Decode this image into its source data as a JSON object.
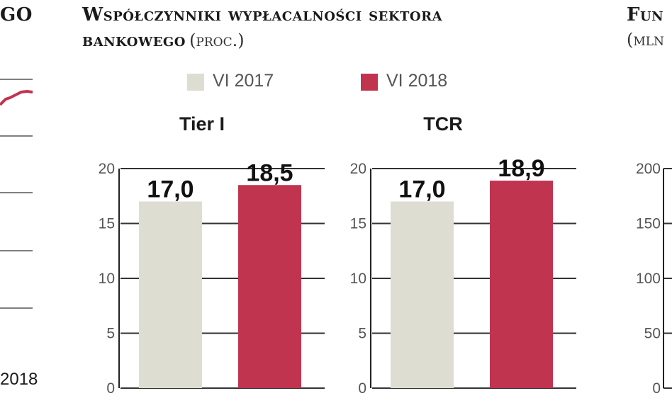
{
  "left_fragment": {
    "title_fragment": "GO",
    "year_label": "2018"
  },
  "main": {
    "title_line1": "Współczynniki wypłacalności sektora",
    "title_line2_bold": "bankowego",
    "title_line2_light": "(proc.)",
    "colors": {
      "vi2017": "#deddd2",
      "vi2018": "#c0344f",
      "axis": "#222222",
      "grid": "#333333"
    }
  },
  "right_fragment": {
    "title_fragment": "Fun",
    "subtitle_fragment": "(mln",
    "ticks": [
      "200",
      "150",
      "100",
      "50",
      "0"
    ]
  },
  "chart_data": [
    {
      "type": "bar",
      "title": "Tier I",
      "categories": [
        "VI 2017",
        "VI 2018"
      ],
      "values": [
        17.0,
        18.5
      ],
      "value_labels": [
        "17,0",
        "18,5"
      ],
      "ylim": [
        0,
        20
      ],
      "yticks": [
        "0",
        "5",
        "10",
        "15",
        "20"
      ],
      "legend": [
        "VI 2017",
        "VI 2018"
      ],
      "legend_position": "top",
      "grid": true
    },
    {
      "type": "bar",
      "title": "TCR",
      "categories": [
        "VI 2017",
        "VI 2018"
      ],
      "values": [
        17.0,
        18.9
      ],
      "value_labels": [
        "17,0",
        "18,9"
      ],
      "ylim": [
        0,
        20
      ],
      "yticks": [
        "0",
        "5",
        "10",
        "15",
        "20"
      ],
      "grid": true
    }
  ]
}
